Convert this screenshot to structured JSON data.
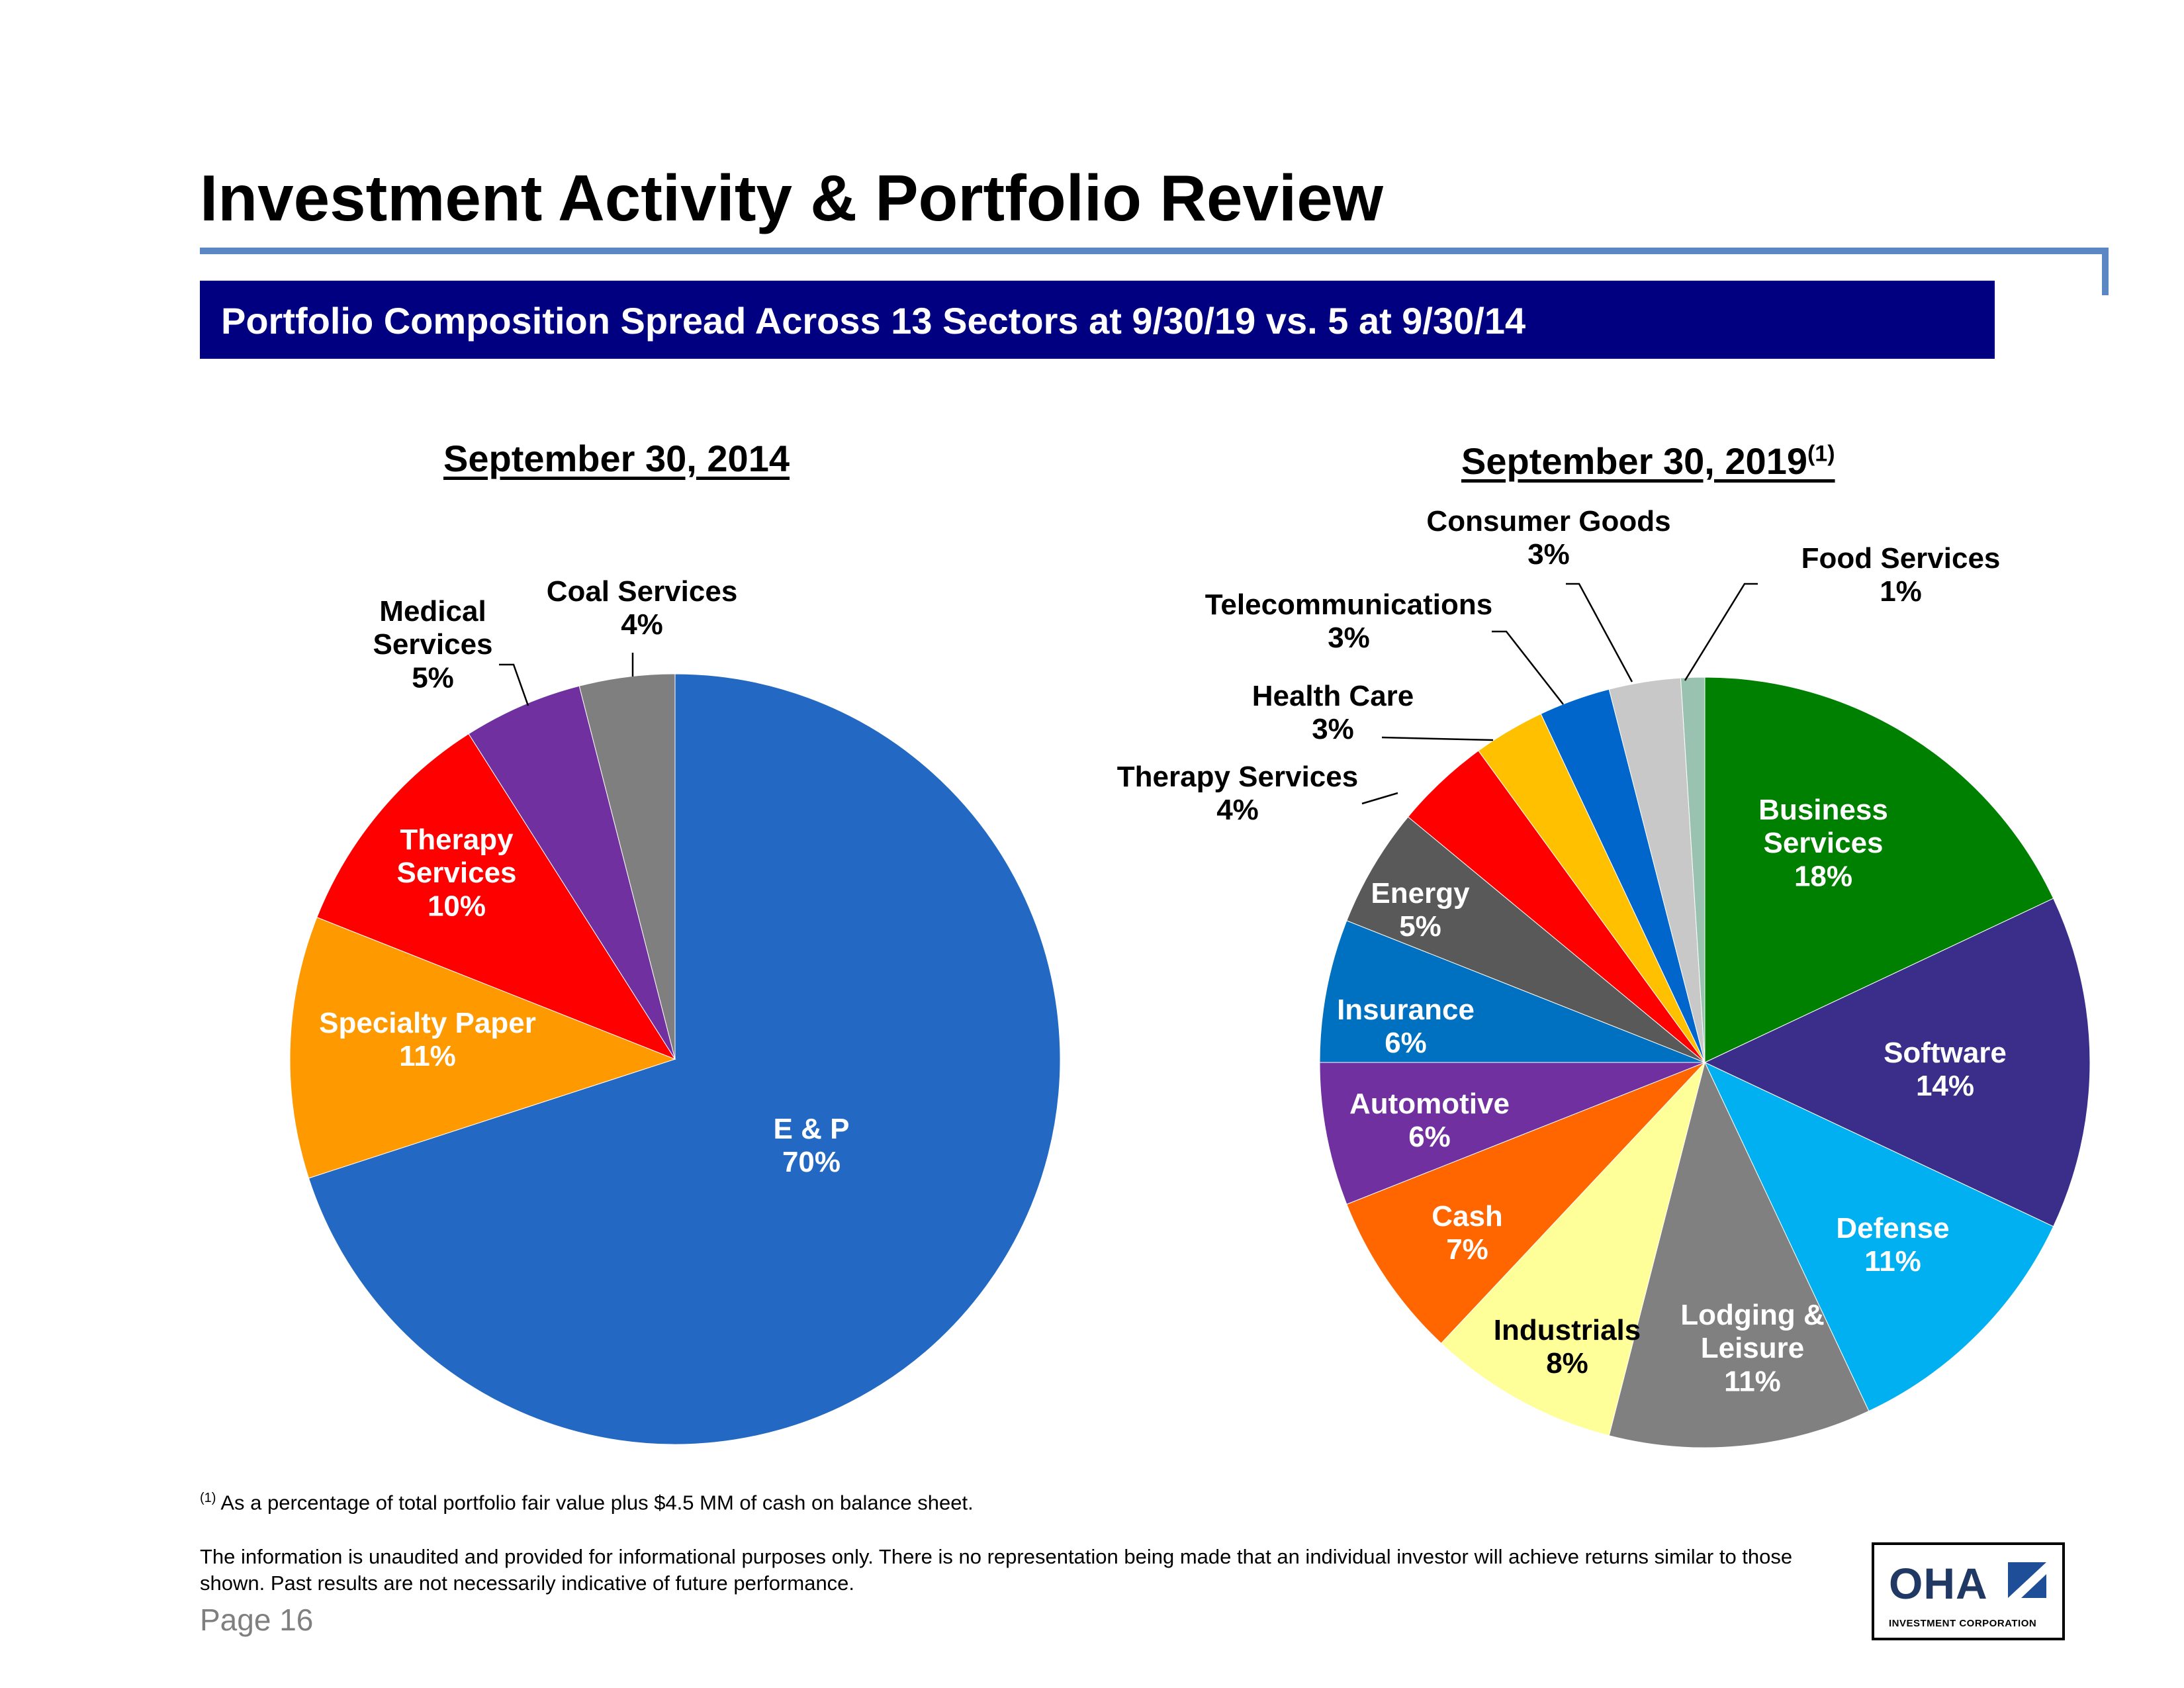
{
  "header": {
    "title": "Investment Activity & Portfolio Review",
    "banner": "Portfolio Composition Spread Across 13 Sectors at 9/30/19 vs. 5 at 9/30/14"
  },
  "chart_data": [
    {
      "type": "pie",
      "title": "September 30, 2014",
      "labels": [
        "E & P",
        "Specialty Paper",
        "Therapy Services",
        "Medical Services",
        "Coal Services"
      ],
      "values": [
        70,
        11,
        10,
        5,
        4
      ],
      "value_labels": [
        "70%",
        "11%",
        "10%",
        "5%",
        "4%"
      ],
      "colors": [
        "#2369c3",
        "#ff9900",
        "#ff0000",
        "#7030a0",
        "#7f7f7f"
      ]
    },
    {
      "type": "pie",
      "title": "September 30, 2019",
      "title_note": "(1)",
      "labels": [
        "Business Services",
        "Software",
        "Defense",
        "Lodging & Leisure",
        "Industrials",
        "Cash",
        "Automotive",
        "Insurance",
        "Energy",
        "Therapy Services",
        "Health Care",
        "Telecommunications",
        "Consumer Goods",
        "Food Services"
      ],
      "values": [
        18,
        14,
        11,
        11,
        8,
        7,
        6,
        6,
        5,
        4,
        3,
        3,
        3,
        1
      ],
      "value_labels": [
        "18%",
        "14%",
        "11%",
        "11%",
        "8%",
        "7%",
        "6%",
        "6%",
        "5%",
        "4%",
        "3%",
        "3%",
        "3%",
        "1%"
      ],
      "colors": [
        "#008000",
        "#3a2e8a",
        "#00b0f0",
        "#808080",
        "#ffff99",
        "#ff6600",
        "#7030a0",
        "#0070c0",
        "#595959",
        "#ff0000",
        "#ffc000",
        "#0066cc",
        "#c8c8c8",
        "#99c2b0"
      ]
    }
  ],
  "footnote": {
    "marker": "(1)",
    "text": "As a percentage of total portfolio fair value plus $4.5 MM of cash on balance sheet."
  },
  "disclaimer": "The information is unaudited and provided for informational purposes only. There is no representation being made that an individual investor will achieve returns similar to those shown. Past results are not necessarily indicative of future performance.",
  "page": "Page 16",
  "logo": {
    "word": "OHA",
    "subtitle": "INVESTMENT CORPORATION"
  }
}
